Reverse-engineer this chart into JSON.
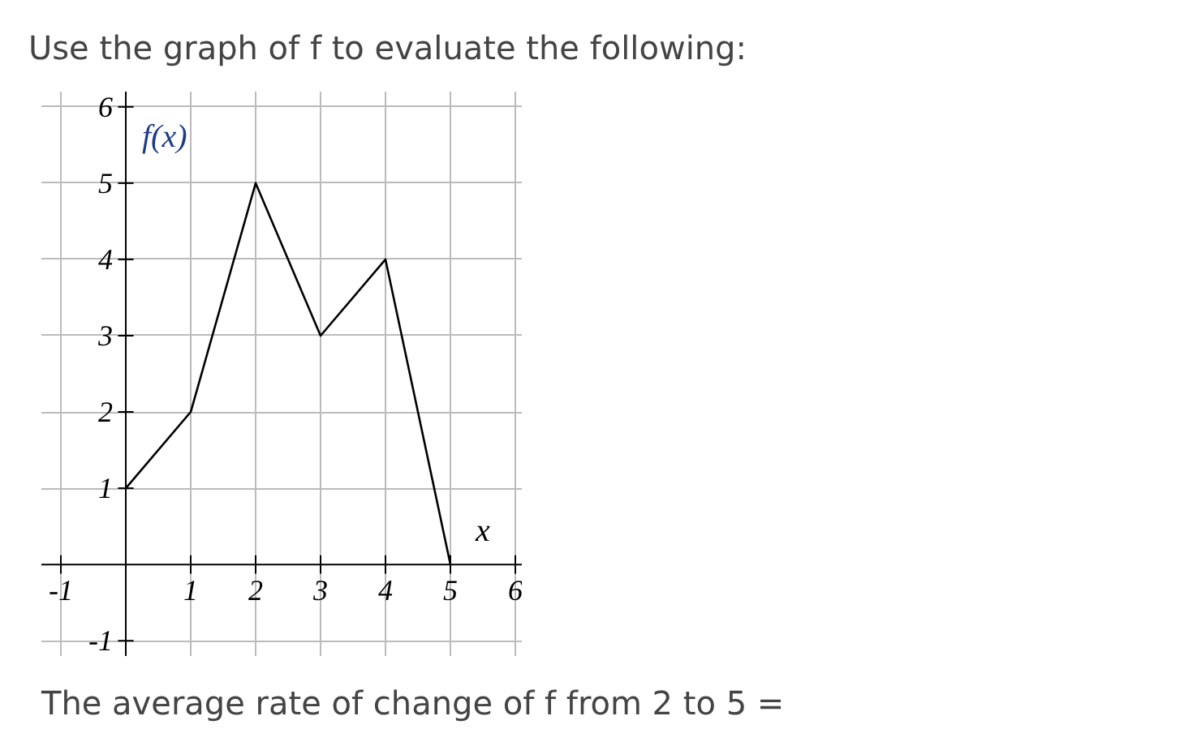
{
  "chart_data": {
    "type": "line",
    "title": "Use the graph of f to evaluate the following:",
    "xlabel": "x",
    "ylabel": "f(x)",
    "x": [
      0,
      1,
      2,
      3,
      4,
      5
    ],
    "values": [
      1,
      2,
      5,
      3,
      4,
      0
    ],
    "color": "#000000",
    "xlim": [
      -1.3,
      6.1
    ],
    "ylim": [
      -1.2,
      6.2
    ],
    "xticks": [
      -1,
      1,
      2,
      3,
      4,
      5,
      6
    ],
    "yticks": [
      -1,
      1,
      2,
      3,
      4,
      5,
      6
    ],
    "grid": true,
    "marker": "none",
    "annotations": [
      "The average rate of change of f from 2 to 5 ="
    ]
  }
}
